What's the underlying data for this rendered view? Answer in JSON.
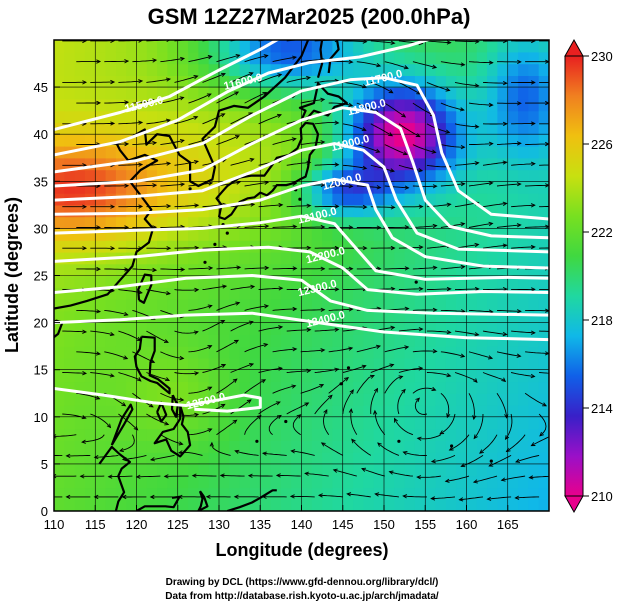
{
  "title": "GSM 12Z27Mar2025 (200.0hPa)",
  "xlabel": "Longitude (degrees)",
  "ylabel": "Latitude (degrees)",
  "credits": [
    "Drawing by DCL (https://www.gfd-dennou.org/library/dcl/)",
    "Data from http://database.rish.kyoto-u.ac.jp/arch/jmadata/"
  ],
  "map_extent": {
    "lon": [
      110,
      170
    ],
    "lat": [
      0,
      50
    ]
  },
  "x_ticks": [
    "110",
    "115",
    "120",
    "125",
    "130",
    "135",
    "140",
    "145",
    "150",
    "155",
    "160",
    "165"
  ],
  "y_ticks": [
    "0",
    "5",
    "10",
    "15",
    "20",
    "25",
    "30",
    "35",
    "40",
    "45"
  ],
  "colorbar": {
    "min": 210,
    "max": 230,
    "tick_labels": [
      "210",
      "214",
      "218",
      "222",
      "226",
      "230"
    ],
    "colors": [
      "#e8008c",
      "#9a10c8",
      "#3820c8",
      "#1060e8",
      "#10b8e8",
      "#20d8a0",
      "#40d840",
      "#78e020",
      "#c8e010",
      "#f0c010",
      "#f08020",
      "#e82020"
    ]
  },
  "contours": [
    {
      "label": "11500.0"
    },
    {
      "label": "11600.0"
    },
    {
      "label": "11700.0"
    },
    {
      "label": "11800.0"
    },
    {
      "label": "11900.0"
    },
    {
      "label": "12000.0"
    },
    {
      "label": "12100.0"
    },
    {
      "label": "12200.0"
    },
    {
      "label": "12300.0"
    },
    {
      "label": "12400.0"
    },
    {
      "label": "12500.0"
    }
  ],
  "colors": {
    "contour": "#ffffff",
    "coast": "#000000",
    "vector": "#000000",
    "grid": "#000000"
  }
}
